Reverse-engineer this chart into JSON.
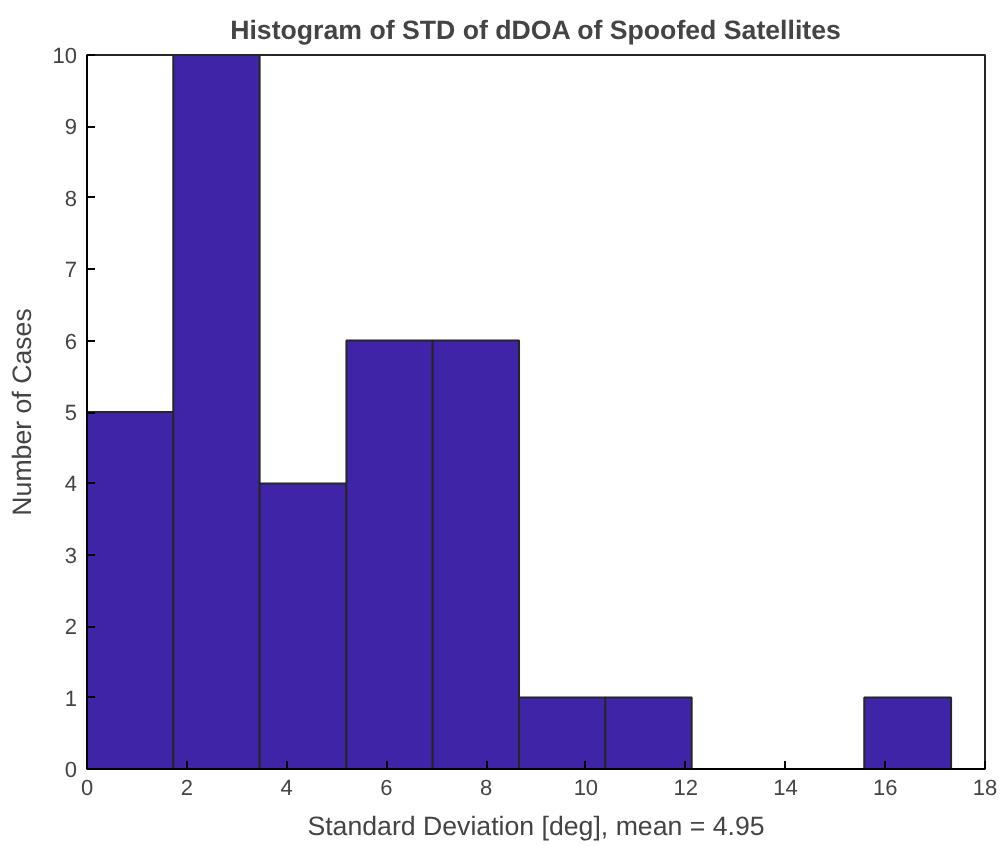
{
  "chart_data": {
    "type": "histogram",
    "title": "Histogram of STD of dDOA of Spoofed Satellites",
    "xlabel": "Standard Deviation [deg], mean = 4.95",
    "ylabel": "Number of Cases",
    "bins": [
      0,
      1.73,
      3.46,
      5.2,
      6.93,
      8.66,
      10.39,
      12.12,
      13.85,
      15.58,
      17.32
    ],
    "values": [
      5,
      10,
      4,
      6,
      6,
      1,
      1,
      0,
      0,
      1
    ],
    "color": "#4024a8",
    "xlim": [
      0,
      18
    ],
    "xticks": [
      0,
      2,
      4,
      6,
      8,
      10,
      12,
      14,
      16,
      18
    ],
    "ylim": [
      0,
      10
    ],
    "yticks": [
      0,
      1,
      2,
      3,
      4,
      5,
      6,
      7,
      8,
      9,
      10
    ],
    "grid": false
  }
}
